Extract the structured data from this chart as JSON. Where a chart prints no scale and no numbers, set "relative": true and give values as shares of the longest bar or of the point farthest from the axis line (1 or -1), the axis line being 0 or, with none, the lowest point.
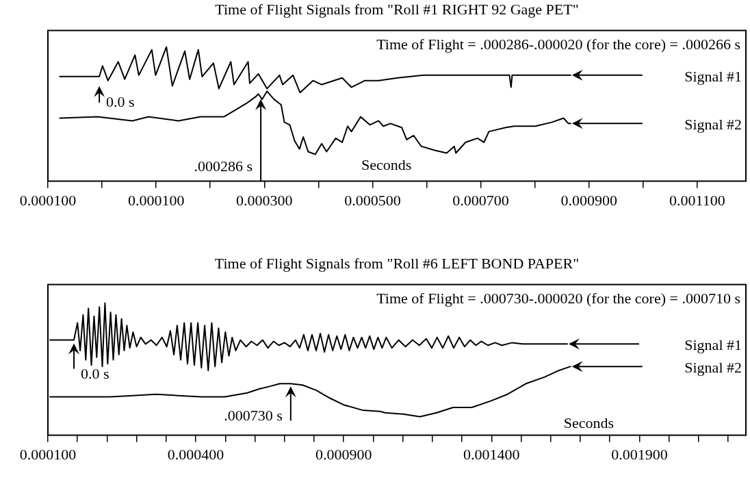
{
  "chart_data": [
    {
      "type": "line",
      "title": "Time of Flight Signals from \"Roll #1 RIGHT 92 Gage PET\"",
      "xlabel": "Seconds",
      "relative": true,
      "marker": "none",
      "tick_labels": "x",
      "xlim": [
        -0.0001,
        0.00119
      ],
      "xticks": [
        {
          "value": -0.0001,
          "label": "0.000100"
        },
        {
          "value": 0,
          "label": null
        },
        {
          "value": 0.0001,
          "label": "0.000100"
        },
        {
          "value": 0.0002,
          "label": null
        },
        {
          "value": 0.0003,
          "label": "0.000300"
        },
        {
          "value": 0.0004,
          "label": null
        },
        {
          "value": 0.0005,
          "label": "0.000500"
        },
        {
          "value": 0.0006,
          "label": null
        },
        {
          "value": 0.0007,
          "label": "0.000700"
        },
        {
          "value": 0.0008,
          "label": null
        },
        {
          "value": 0.0009,
          "label": "0.000900"
        },
        {
          "value": 0.001,
          "label": null
        },
        {
          "value": 0.0011,
          "label": "0.001100"
        }
      ],
      "annotations": [
        "Time of Flight = .000286-.000020 (for the core) = .000266 s",
        {
          "text": "0.0 s",
          "x": -5e-06,
          "y": 0.78
        },
        ".000286 s"
      ],
      "series": [
        {
          "name": "Signal #1",
          "color": "#000000",
          "x": [
            -7.8e-05,
            -5e-06,
            1e-06,
            1.1e-05,
            3e-05,
            4.2e-05,
            6.1e-05,
            6.8e-05,
            9.2e-05,
            9.9e-05,
            0.000119,
            0.00013,
            0.000153,
            0.000162,
            0.000178,
            0.000185,
            0.000206,
            0.000216,
            0.000238,
            0.000244,
            0.00027,
            0.000273,
            0.000289,
            0.000305,
            0.000328,
            0.000334,
            0.000353,
            0.000366,
            0.00039,
            0.000406,
            0.000444,
            0.000461,
            0.000486,
            0.000511,
            0.000546,
            0.000594,
            0.00071,
            0.000753,
            0.000756,
            0.000758,
            0.000866
          ],
          "values": [
            0.78,
            0.78,
            0.86,
            0.75,
            0.89,
            0.76,
            0.94,
            0.79,
            0.98,
            0.79,
            1.0,
            0.71,
            0.97,
            0.76,
            0.98,
            0.78,
            0.88,
            0.69,
            0.89,
            0.72,
            0.89,
            0.73,
            0.8,
            0.69,
            0.79,
            0.72,
            0.79,
            0.66,
            0.75,
            0.72,
            0.77,
            0.7,
            0.75,
            0.75,
            0.77,
            0.79,
            0.79,
            0.79,
            0.7,
            0.79,
            0.79
          ]
        },
        {
          "name": "Signal #2",
          "color": "#000000",
          "x": [
            -7.8e-05,
            -8e-06,
            5.6e-05,
            8.6e-05,
            0.000141,
            0.000182,
            0.000225,
            0.000246,
            0.000267,
            0.000284,
            0.000289,
            0.000296,
            0.000305,
            0.000318,
            0.000331,
            0.000337,
            0.000347,
            0.000356,
            0.000365,
            0.000372,
            0.000381,
            0.000394,
            0.000406,
            0.000415,
            0.000432,
            0.000444,
            0.000454,
            0.000461,
            0.000478,
            0.000495,
            0.000511,
            0.00052,
            0.000533,
            0.000554,
            0.000563,
            0.000576,
            0.00059,
            0.000615,
            0.000637,
            0.000651,
            0.000654,
            0.000672,
            0.000694,
            0.000706,
            0.000715,
            0.000746,
            0.000762,
            0.000801,
            0.000832,
            0.000853,
            0.000862,
            0.000866
          ],
          "values": [
            0.47,
            0.48,
            0.45,
            0.48,
            0.45,
            0.48,
            0.48,
            0.53,
            0.58,
            0.63,
            0.65,
            0.61,
            0.67,
            0.61,
            0.57,
            0.44,
            0.42,
            0.3,
            0.24,
            0.33,
            0.22,
            0.2,
            0.28,
            0.22,
            0.32,
            0.29,
            0.41,
            0.37,
            0.48,
            0.42,
            0.45,
            0.41,
            0.43,
            0.4,
            0.31,
            0.34,
            0.26,
            0.23,
            0.21,
            0.26,
            0.21,
            0.29,
            0.32,
            0.29,
            0.37,
            0.4,
            0.41,
            0.41,
            0.44,
            0.47,
            0.43,
            0.43
          ]
        }
      ]
    },
    {
      "type": "line",
      "title": "Time of Flight Signals from \"Roll #6 LEFT BOND PAPER\"",
      "xlabel": "Seconds",
      "relative": true,
      "marker": "none",
      "tick_labels": "x",
      "xlim": [
        -0.0001,
        0.00226
      ],
      "xticks": [
        {
          "value": -0.0001,
          "label": "0.000100"
        },
        {
          "value": 0,
          "label": null
        },
        {
          "value": 0.0001,
          "label": null
        },
        {
          "value": 0.0002,
          "label": null
        },
        {
          "value": 0.0003,
          "label": null
        },
        {
          "value": 0.0004,
          "label": "0.000400"
        },
        {
          "value": 0.0005,
          "label": null
        },
        {
          "value": 0.0006,
          "label": null
        },
        {
          "value": 0.0007,
          "label": null
        },
        {
          "value": 0.0008,
          "label": null
        },
        {
          "value": 0.0009,
          "label": "0.000900"
        },
        {
          "value": 0.001,
          "label": null
        },
        {
          "value": 0.0011,
          "label": null
        },
        {
          "value": 0.0012,
          "label": null
        },
        {
          "value": 0.0013,
          "label": null
        },
        {
          "value": 0.0014,
          "label": "0.001400"
        },
        {
          "value": 0.0015,
          "label": null
        },
        {
          "value": 0.0016,
          "label": null
        },
        {
          "value": 0.0017,
          "label": null
        },
        {
          "value": 0.0018,
          "label": null
        },
        {
          "value": 0.0019,
          "label": "0.001900"
        },
        {
          "value": 0.002,
          "label": null
        },
        {
          "value": 0.0021,
          "label": null
        },
        {
          "value": 0.0022,
          "label": null
        }
      ],
      "annotations": [
        "Time of Flight = .000730-.000020 (for the core) = .000710 s",
        {
          "text": "0.0 s",
          "x": -1.2e-05,
          "y": 0.72
        },
        {
          "text": ".000730 s",
          "x": 0.000721,
          "y": 0.39
        }
      ],
      "series": [
        {
          "name": "Signal #1",
          "color": "#000000",
          "x": [
            -9.3e-05,
            -6.5e-05,
            -4.2e-05,
            -1.2e-05,
            0.0,
            9e-06,
            1.9e-05,
            2.8e-05,
            3.7e-05,
            4.7e-05,
            5.6e-05,
            6.5e-05,
            7.4e-05,
            8.4e-05,
            9.3e-05,
            0.000102,
            0.000112,
            0.000121,
            0.00013,
            0.00014,
            0.000149,
            0.000158,
            0.000167,
            0.000177,
            0.000188,
            0.0002,
            0.000214,
            0.00023,
            0.000249,
            0.000267,
            0.000286,
            0.000302,
            0.000314,
            0.000326,
            0.000337,
            0.000349,
            0.000361,
            0.000372,
            0.000384,
            0.000395,
            0.000407,
            0.000419,
            0.00043,
            0.000442,
            0.000454,
            0.000465,
            0.000477,
            0.000488,
            0.0005,
            0.000512,
            0.000523,
            0.000535,
            0.000551,
            0.00057,
            0.000588,
            0.000607,
            0.000626,
            0.000644,
            0.000663,
            0.000681,
            0.0007,
            0.000719,
            0.000737,
            0.000751,
            0.000765,
            0.000779,
            0.000793,
            0.000807,
            0.000821,
            0.000835,
            0.000849,
            0.000863,
            0.000877,
            0.000891,
            0.000905,
            0.000919,
            0.000933,
            0.000947,
            0.000961,
            0.000974,
            0.000988,
            0.001002,
            0.001016,
            0.00103,
            0.001044,
            0.001063,
            0.001086,
            0.001109,
            0.001133,
            0.001156,
            0.001179,
            0.001198,
            0.001216,
            0.001235,
            0.001254,
            0.001272,
            0.001291,
            0.001309,
            0.001328,
            0.001347,
            0.001365,
            0.001388,
            0.001412,
            0.001435,
            0.00147,
            0.001505,
            0.001574,
            0.001656
          ],
          "values": [
            0.72,
            0.72,
            0.72,
            0.72,
            0.85,
            0.64,
            0.91,
            0.57,
            0.96,
            0.53,
            0.9,
            0.59,
            0.97,
            0.52,
            1.0,
            0.54,
            0.93,
            0.57,
            0.91,
            0.61,
            0.88,
            0.64,
            0.83,
            0.66,
            0.78,
            0.67,
            0.74,
            0.69,
            0.72,
            0.68,
            0.74,
            0.67,
            0.79,
            0.61,
            0.83,
            0.57,
            0.85,
            0.54,
            0.85,
            0.53,
            0.85,
            0.51,
            0.83,
            0.49,
            0.85,
            0.52,
            0.81,
            0.55,
            0.78,
            0.6,
            0.74,
            0.64,
            0.72,
            0.67,
            0.71,
            0.68,
            0.72,
            0.66,
            0.71,
            0.68,
            0.7,
            0.67,
            0.72,
            0.66,
            0.76,
            0.64,
            0.76,
            0.64,
            0.77,
            0.63,
            0.76,
            0.64,
            0.75,
            0.65,
            0.76,
            0.64,
            0.74,
            0.66,
            0.74,
            0.66,
            0.75,
            0.65,
            0.74,
            0.66,
            0.74,
            0.66,
            0.72,
            0.67,
            0.72,
            0.68,
            0.73,
            0.66,
            0.74,
            0.66,
            0.75,
            0.66,
            0.74,
            0.67,
            0.72,
            0.68,
            0.71,
            0.68,
            0.7,
            0.68,
            0.7,
            0.69,
            0.69,
            0.69
          ]
        },
        {
          "name": "Signal #2",
          "color": "#000000",
          "x": [
            -9.3e-05,
            3.3e-05,
            0.000109,
            0.000186,
            0.000265,
            0.000342,
            0.000419,
            0.000498,
            0.000574,
            0.000614,
            0.000651,
            0.000684,
            0.000721,
            0.000761,
            0.000807,
            0.000854,
            0.0009,
            0.000963,
            0.001023,
            0.00104,
            0.001102,
            0.001158,
            0.001214,
            0.00127,
            0.001333,
            0.001398,
            0.001454,
            0.001516,
            0.001579,
            0.001628,
            0.001667
          ],
          "values": [
            0.29,
            0.29,
            0.29,
            0.3,
            0.31,
            0.3,
            0.29,
            0.29,
            0.32,
            0.35,
            0.37,
            0.39,
            0.39,
            0.38,
            0.34,
            0.28,
            0.23,
            0.19,
            0.18,
            0.17,
            0.16,
            0.14,
            0.17,
            0.21,
            0.21,
            0.26,
            0.31,
            0.39,
            0.44,
            0.49,
            0.52
          ]
        }
      ]
    }
  ]
}
